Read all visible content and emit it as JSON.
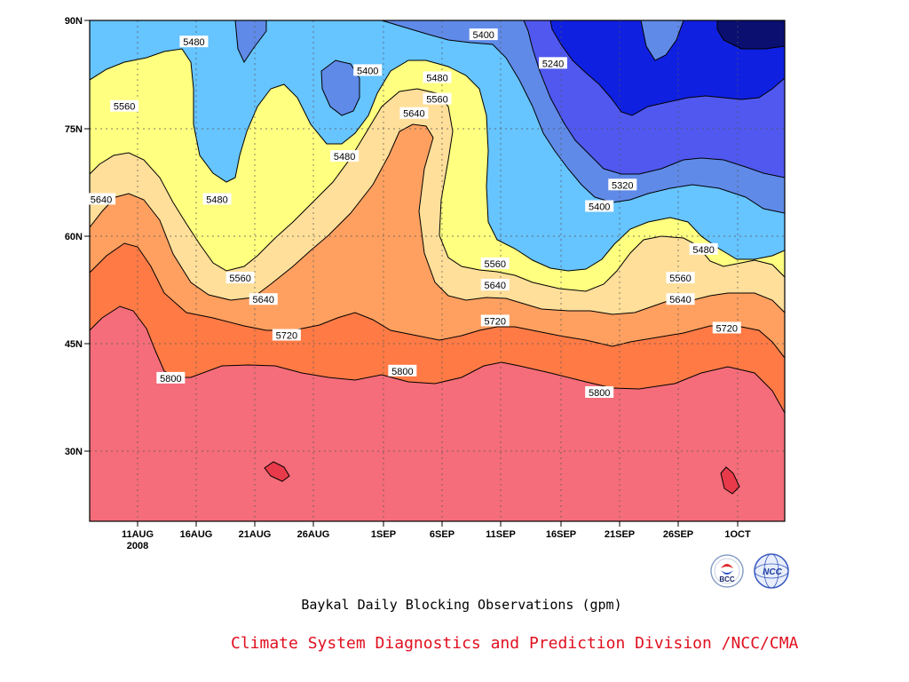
{
  "chart_data": {
    "type": "heatmap",
    "subtype": "filled-contour",
    "title": "Baykal Daily Blocking Observations (gpm)",
    "xlabel": "",
    "ylabel": "",
    "x_ticks": [
      "11AUG\n2008",
      "16AUG",
      "21AUG",
      "26AUG",
      "1SEP",
      "6SEP",
      "11SEP",
      "16SEP",
      "21SEP",
      "26SEP",
      "1OCT"
    ],
    "x_range": [
      "2008-08-07",
      "2008-10-06"
    ],
    "y_ticks": [
      "30N",
      "45N",
      "60N",
      "75N",
      "90N"
    ],
    "y_range": [
      20,
      90
    ],
    "grid": true,
    "contour_levels": [
      5240,
      5320,
      5400,
      5480,
      5560,
      5640,
      5720,
      5800
    ],
    "level_colors": {
      "below_5240": "#0a0f70",
      "5240_5320": "#1020e0",
      "5320_5400": "#5058f0",
      "5400_5480": "#5f8ae8",
      "5480_5560": "#66c4ff",
      "5560_5640": "#ffff80",
      "5640_5720": "#ffdf9a",
      "5720_5800": "#ffa060",
      "5800_5880": "#ff7a45",
      "above_5880": "#f56d7a",
      "max_cells": "#e83a4a"
    },
    "contour_labels": [
      {
        "value": "5480",
        "date": "Aug 16",
        "lat": 87
      },
      {
        "value": "5400",
        "date": "Aug 31",
        "lat": 83
      },
      {
        "value": "5400",
        "date": "Sep 10",
        "lat": 88
      },
      {
        "value": "5240",
        "date": "Sep 16",
        "lat": 84
      },
      {
        "value": "5480",
        "date": "Sep 6",
        "lat": 82
      },
      {
        "value": "5560",
        "date": "Sep 6",
        "lat": 79
      },
      {
        "value": "5640",
        "date": "Sep 4",
        "lat": 77
      },
      {
        "value": "5560",
        "date": "Aug 10",
        "lat": 78
      },
      {
        "value": "5480",
        "date": "Aug 29",
        "lat": 71
      },
      {
        "value": "5640",
        "date": "Aug 8",
        "lat": 65
      },
      {
        "value": "5480",
        "date": "Aug 18",
        "lat": 65
      },
      {
        "value": "5320",
        "date": "Sep 22",
        "lat": 67
      },
      {
        "value": "5400",
        "date": "Sep 20",
        "lat": 64
      },
      {
        "value": "5480",
        "date": "Sep 29",
        "lat": 58
      },
      {
        "value": "5560",
        "date": "Aug 20",
        "lat": 54
      },
      {
        "value": "5560",
        "date": "Sep 11",
        "lat": 56
      },
      {
        "value": "5560",
        "date": "Sep 27",
        "lat": 54
      },
      {
        "value": "5640",
        "date": "Aug 22",
        "lat": 51
      },
      {
        "value": "5640",
        "date": "Sep 11",
        "lat": 53
      },
      {
        "value": "5640",
        "date": "Sep 27",
        "lat": 51
      },
      {
        "value": "5720",
        "date": "Aug 24",
        "lat": 46
      },
      {
        "value": "5720",
        "date": "Sep 11",
        "lat": 48
      },
      {
        "value": "5720",
        "date": "Oct 1",
        "lat": 47
      },
      {
        "value": "5800",
        "date": "Aug 14",
        "lat": 40
      },
      {
        "value": "5800",
        "date": "Sep 3",
        "lat": 41
      },
      {
        "value": "5800",
        "date": "Sep 20",
        "lat": 38
      }
    ]
  },
  "caption": {
    "title": "Baykal Daily Blocking Observations (gpm)",
    "org": "Climate System Diagnostics and Prediction Division /NCC/CMA"
  },
  "logos": {
    "left_label": "BCC",
    "right_label": "NCC"
  }
}
